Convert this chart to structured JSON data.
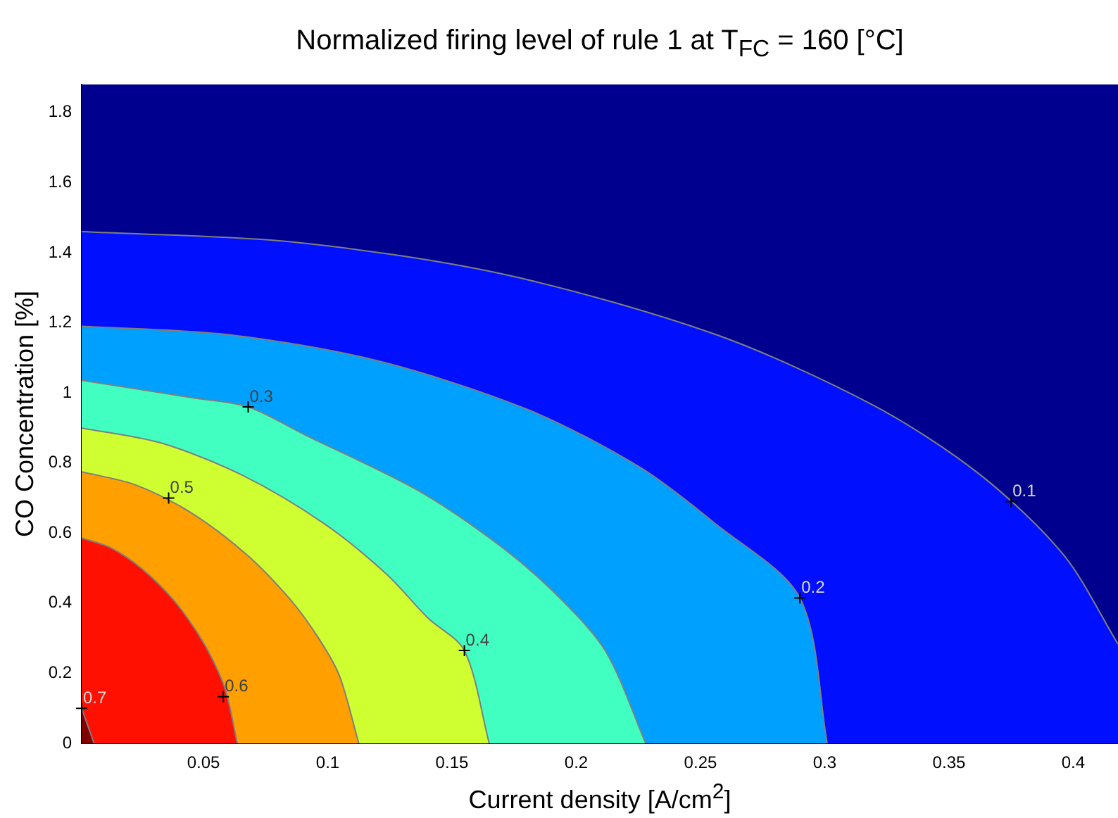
{
  "chart_data": {
    "type": "area",
    "title": "Normalized firing level of rule 1 at T$_{FC}$ = 160 [°C]",
    "xlabel": "Current density [A/cm$^{2}$]",
    "ylabel": "CO Concentration [%]",
    "xlim": [
      0.001,
      0.418
    ],
    "ylim": [
      0,
      1.88
    ],
    "xticks": [
      0.05,
      0.1,
      0.15,
      0.2,
      0.25,
      0.3,
      0.35,
      0.4
    ],
    "yticks": [
      0,
      0.2,
      0.4,
      0.6,
      0.8,
      1,
      1.2,
      1.4,
      1.6,
      1.8
    ],
    "grid": false,
    "legend": false,
    "bands": [
      {
        "axis": "y",
        "from": 0,
        "to": 1.88,
        "color": "#00008f"
      }
    ],
    "series": [
      {
        "color": "#0010ff",
        "x": [
          0.001,
          0.0852,
          0.1704,
          0.2556,
          0.3195,
          0.3621,
          0.3962,
          0.418
        ],
        "values": [
          1.46,
          1.431,
          1.339,
          1.168,
          0.965,
          0.769,
          0.537,
          0.283
        ]
      },
      {
        "color": "#00a0ff",
        "x": [
          0.001,
          0.0602,
          0.1204,
          0.1806,
          0.2258,
          0.2559,
          0.29,
          0.301
        ],
        "values": [
          1.19,
          1.166,
          1.091,
          0.952,
          0.787,
          0.627,
          0.415,
          0
        ]
      },
      {
        "color": "#40ffc0",
        "x": [
          0.001,
          0.0456,
          0.068,
          0.0912,
          0.1368,
          0.171,
          0.1938,
          0.212,
          0.228
        ],
        "values": [
          1.036,
          0.986,
          0.96,
          0.879,
          0.72,
          0.555,
          0.412,
          0.261,
          0
        ]
      },
      {
        "color": "#cfff30",
        "x": [
          0.001,
          0.033,
          0.066,
          0.099,
          0.1238,
          0.1403,
          0.155,
          0.165
        ],
        "values": [
          0.9,
          0.857,
          0.764,
          0.625,
          0.482,
          0.358,
          0.265,
          0
        ]
      },
      {
        "color": "#ff9f00",
        "x": [
          0.001,
          0.0225,
          0.045,
          0.0675,
          0.0844,
          0.0956,
          0.1046,
          0.1125
        ],
        "values": [
          0.775,
          0.738,
          0.658,
          0.538,
          0.415,
          0.308,
          0.195,
          0
        ]
      },
      {
        "color": "#ff1000",
        "x": [
          0.001,
          0.0127,
          0.0254,
          0.0382,
          0.0477,
          0.0541,
          0.0591,
          0.0636
        ],
        "values": [
          0.586,
          0.558,
          0.497,
          0.407,
          0.314,
          0.233,
          0.147,
          0
        ]
      },
      {
        "color": "#800000",
        "x": [
          0.001,
          0.006
        ],
        "values": [
          0.1,
          0
        ]
      }
    ],
    "annotations": [
      {
        "text": "0.1",
        "x": 0.375,
        "y": 0.69
      },
      {
        "text": "0.2",
        "x": 0.29,
        "y": 0.415
      },
      {
        "text": "0.3",
        "x": 0.068,
        "y": 0.96
      },
      {
        "text": "0.4",
        "x": 0.155,
        "y": 0.265
      },
      {
        "text": "0.5",
        "x": 0.036,
        "y": 0.7
      },
      {
        "text": "0.6",
        "x": 0.058,
        "y": 0.133
      },
      {
        "text": "0.7",
        "x": 0.001,
        "y": 0.1
      }
    ]
  }
}
